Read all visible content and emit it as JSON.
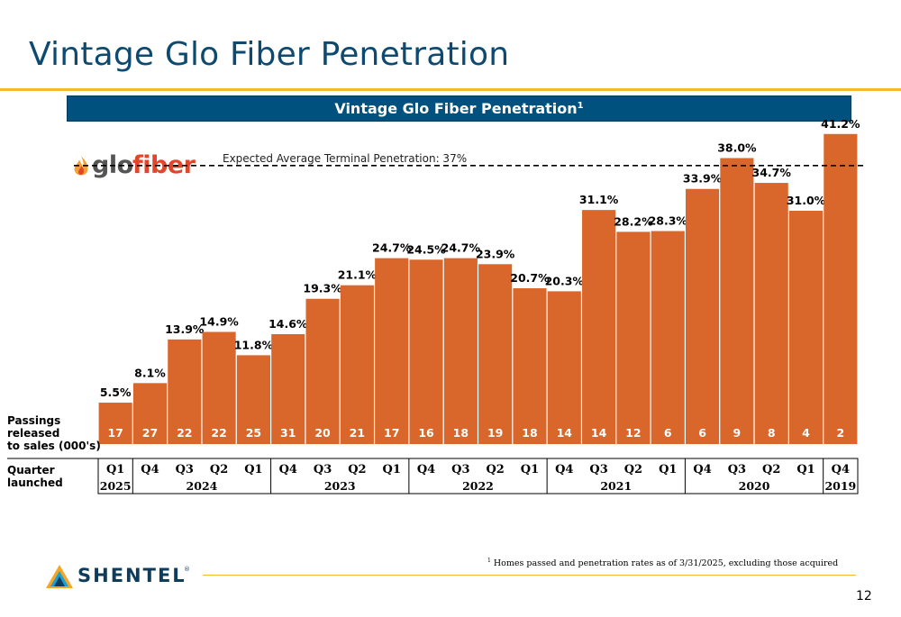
{
  "header": {
    "title": "Vintage Glo Fiber Penetration"
  },
  "banner": {
    "title": "Vintage Glo Fiber Penetration",
    "superscript": "1"
  },
  "logos": {
    "glo_fiber": {
      "part1": "glo",
      "part2": "fiber"
    },
    "shentel": {
      "word": "SHENTEL",
      "mark": "®"
    }
  },
  "colors": {
    "bar": "#d9662a",
    "title": "#0e4a70",
    "banner": "#00517d",
    "rule": "#f5b82e"
  },
  "chart_data": {
    "type": "bar",
    "title": "Vintage Glo Fiber Penetration",
    "categories": [
      "Q1 2025",
      "Q4 2024",
      "Q3 2024",
      "Q2 2024",
      "Q1 2024",
      "Q4 2023",
      "Q3 2023",
      "Q2 2023",
      "Q1 2023",
      "Q4 2022",
      "Q3 2022",
      "Q2 2022",
      "Q1 2022",
      "Q4 2021",
      "Q3 2021",
      "Q2 2021",
      "Q1 2021",
      "Q4 2020",
      "Q3 2020",
      "Q2 2020",
      "Q1 2020",
      "Q4 2019"
    ],
    "quarters": [
      "Q1",
      "Q4",
      "Q3",
      "Q2",
      "Q1",
      "Q4",
      "Q3",
      "Q2",
      "Q1",
      "Q4",
      "Q3",
      "Q2",
      "Q1",
      "Q4",
      "Q3",
      "Q2",
      "Q1",
      "Q4",
      "Q3",
      "Q2",
      "Q1",
      "Q4"
    ],
    "values": [
      5.5,
      8.1,
      13.9,
      14.9,
      11.8,
      14.6,
      19.3,
      21.1,
      24.7,
      24.5,
      24.7,
      23.9,
      20.7,
      20.3,
      31.1,
      28.2,
      28.3,
      33.9,
      38.0,
      34.7,
      31.0,
      41.2
    ],
    "value_labels": [
      "5.5%",
      "8.1%",
      "13.9%",
      "14.9%",
      "11.8%",
      "14.6%",
      "19.3%",
      "21.1%",
      "24.7%",
      "24.5%",
      "24.7%",
      "23.9%",
      "20.7%",
      "20.3%",
      "31.1%",
      "28.2%",
      "28.3%",
      "33.9%",
      "38.0%",
      "34.7%",
      "31.0%",
      "41.2%"
    ],
    "passings": [
      "17",
      "27",
      "22",
      "22",
      "25",
      "31",
      "20",
      "21",
      "17",
      "16",
      "18",
      "19",
      "18",
      "14",
      "14",
      "12",
      "6",
      "6",
      "9",
      "8",
      "4",
      "2"
    ],
    "year_groups": [
      {
        "label": "2025",
        "count": 1
      },
      {
        "label": "2024",
        "count": 4
      },
      {
        "label": "2023",
        "count": 4
      },
      {
        "label": "2022",
        "count": 4
      },
      {
        "label": "2021",
        "count": 4
      },
      {
        "label": "2020",
        "count": 4
      },
      {
        "label": "2019",
        "count": 1
      }
    ],
    "reference_line": {
      "value": 37,
      "label": "Expected Average Terminal Penetration: 37%"
    },
    "row_labels": {
      "passings": [
        "Passings",
        "released",
        "to sales (000's)"
      ],
      "quarter": [
        "Quarter",
        "launched"
      ]
    },
    "ylim": [
      0,
      45
    ],
    "xlabel": "",
    "ylabel": "",
    "grid": false
  },
  "footer": {
    "footnote_mark": "1",
    "footnote": "Homes passed and penetration rates as of 3/31/2025, excluding those acquired",
    "page_number": "12"
  }
}
